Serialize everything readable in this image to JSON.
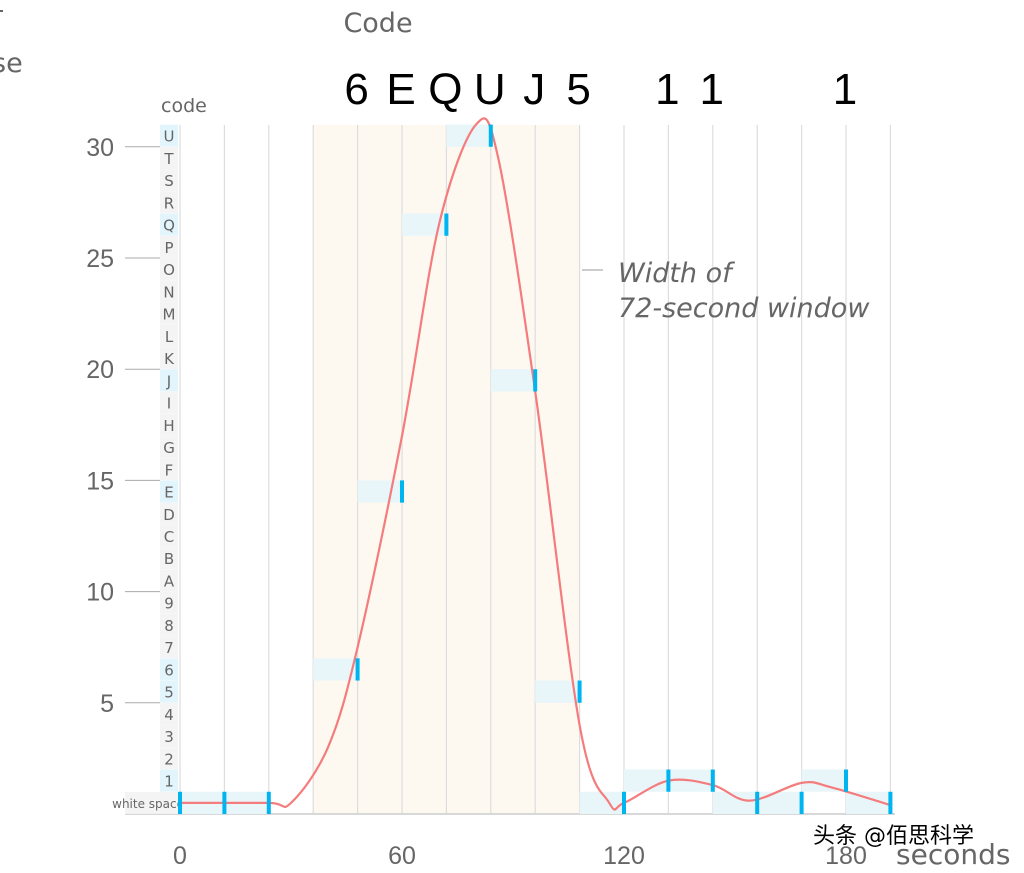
{
  "chart_data": {
    "type": "line",
    "title": "Code",
    "partial_label": "se",
    "xlabel": "seconds",
    "row_axis_label": "code",
    "xlim": [
      0,
      192
    ],
    "ylim": [
      0,
      31
    ],
    "x_ticks": [
      0,
      60,
      120,
      180
    ],
    "y_ticks": [
      5,
      10,
      15,
      20,
      25,
      30
    ],
    "x_grid_step": 12,
    "grid": true,
    "code_rows": [
      "white space",
      "1",
      "2",
      "3",
      "4",
      "5",
      "6",
      "7",
      "8",
      "9",
      "A",
      "B",
      "C",
      "D",
      "E",
      "F",
      "G",
      "H",
      "I",
      "J",
      "K",
      "L",
      "M",
      "N",
      "O",
      "P",
      "Q",
      "R",
      "S",
      "T",
      "U"
    ],
    "samples": [
      {
        "t": 0,
        "v": 0
      },
      {
        "t": 12,
        "v": 0
      },
      {
        "t": 24,
        "v": 0
      },
      {
        "t": 48,
        "v": 6
      },
      {
        "t": 60,
        "v": 14
      },
      {
        "t": 72,
        "v": 26
      },
      {
        "t": 84,
        "v": 30
      },
      {
        "t": 96,
        "v": 19
      },
      {
        "t": 108,
        "v": 5
      },
      {
        "t": 120,
        "v": 0
      },
      {
        "t": 132,
        "v": 1
      },
      {
        "t": 144,
        "v": 1
      },
      {
        "t": 156,
        "v": 0
      },
      {
        "t": 168,
        "v": 0
      },
      {
        "t": 180,
        "v": 1
      },
      {
        "t": 192,
        "v": 0
      }
    ],
    "decoded_codes": [
      {
        "t": 48,
        "label": "6"
      },
      {
        "t": 60,
        "label": "E"
      },
      {
        "t": 72,
        "label": "Q"
      },
      {
        "t": 84,
        "label": "U"
      },
      {
        "t": 96,
        "label": "J"
      },
      {
        "t": 108,
        "label": "5"
      },
      {
        "t": 132,
        "label": "1"
      },
      {
        "t": 144,
        "label": "1"
      },
      {
        "t": 180,
        "label": "1"
      }
    ],
    "curve": [
      [
        0,
        0.5
      ],
      [
        24,
        0.5
      ],
      [
        30,
        0.5
      ],
      [
        40,
        3
      ],
      [
        48,
        7.5
      ],
      [
        60,
        17
      ],
      [
        70,
        26.5
      ],
      [
        80,
        31
      ],
      [
        86,
        29.5
      ],
      [
        96,
        19
      ],
      [
        108,
        4
      ],
      [
        116,
        0.5
      ],
      [
        120,
        0.5
      ],
      [
        132,
        1.5
      ],
      [
        144,
        1.3
      ],
      [
        154,
        0.6
      ],
      [
        168,
        1.4
      ],
      [
        176,
        1.2
      ],
      [
        192,
        0.4
      ]
    ],
    "window": {
      "start": 36,
      "end": 108,
      "label_line1": "Width of",
      "label_line2": "72-second window"
    },
    "colors": {
      "curve": "#f47c7c",
      "marker": "#00b4f0",
      "band": "#e8f6fa",
      "window": "#fdf9f1",
      "grid": "#dddddd",
      "text": "#666666",
      "row_used": "#e3f5fc",
      "row_unused": "#f4f4f4"
    }
  },
  "watermark": "头条 @佰思科学"
}
